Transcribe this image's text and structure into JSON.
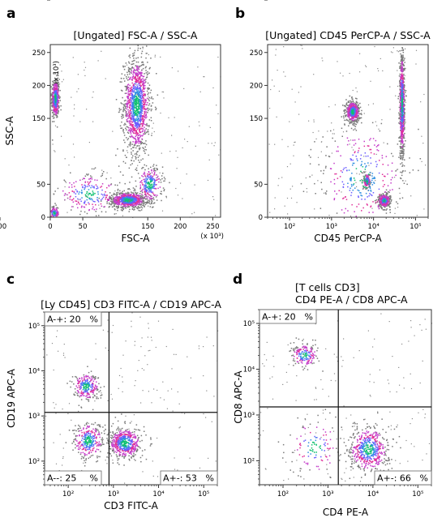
{
  "figure": {
    "panel_letters": [
      "a",
      "b",
      "c",
      "d"
    ]
  },
  "chart_data": [
    {
      "type": "scatter",
      "panel": "a",
      "title": "[Ungated] FSC-A / SSC-A",
      "xlabel": "FSC-A",
      "ylabel": "SSC-A",
      "x_multiplier": "(x 10³)",
      "y_multiplier": "(x 10³)",
      "xlim": [
        0,
        262
      ],
      "ylim": [
        0,
        262
      ],
      "x_ticks": [
        "0",
        "50",
        "100",
        "150",
        "200",
        "250"
      ],
      "y_ticks": [
        "0",
        "50",
        "100",
        "150",
        "200",
        "250"
      ],
      "populations": [
        {
          "x": 8,
          "y": 180,
          "sx": 3,
          "sy": 15,
          "n": 420
        },
        {
          "x": 133,
          "y": 170,
          "sx": 10,
          "sy": 36,
          "n": 1200
        },
        {
          "x": 120,
          "y": 26,
          "sx": 14,
          "sy": 6,
          "n": 780
        },
        {
          "x": 153,
          "y": 50,
          "sx": 10,
          "sy": 14,
          "n": 260
        },
        {
          "x": 60,
          "y": 35,
          "sx": 25,
          "sy": 15,
          "n": 220
        },
        {
          "x": 6,
          "y": 6,
          "sx": 4,
          "sy": 5,
          "n": 120
        }
      ]
    },
    {
      "type": "scatter",
      "panel": "b",
      "title": "[Ungated] CD45 PerCP-A / SSC-A",
      "xlabel": "CD45 PerCP-A",
      "ylabel": "",
      "x_scale": "log",
      "xlim": [
        30,
        200000
      ],
      "ylim": [
        0,
        262
      ],
      "x_ticks": [
        "10²",
        "10³",
        "10⁴",
        "10⁵"
      ],
      "y_ticks": [
        "0",
        "50",
        "100",
        "150",
        "200",
        "250"
      ],
      "populations": [
        {
          "x": 3200,
          "y": 160,
          "sx": 0.08,
          "sy": 8,
          "n": 500
        },
        {
          "x": 48000,
          "y": 170,
          "sx": 0.03,
          "sy": 40,
          "n": 800
        },
        {
          "x": 18000,
          "y": 25,
          "sx": 0.07,
          "sy": 5,
          "n": 380
        },
        {
          "x": 7000,
          "y": 55,
          "sx": 0.04,
          "sy": 6,
          "n": 150
        },
        {
          "x": 5000,
          "y": 60,
          "sx": 0.5,
          "sy": 40,
          "n": 300
        }
      ]
    },
    {
      "type": "scatter",
      "panel": "c",
      "title": "[Ly CD45] CD3 FITC-A / CD19 APC-A",
      "xlabel": "CD3 FITC-A",
      "ylabel": "CD19 APC-A",
      "x_scale": "log",
      "y_scale": "log",
      "xlim": [
        30,
        200000
      ],
      "ylim": [
        30,
        200000
      ],
      "x_ticks": [
        "10²",
        "10³",
        "10⁴",
        "10⁵"
      ],
      "y_ticks": [
        "10²",
        "10³",
        "10⁴",
        "10⁵"
      ],
      "gate_x": 800,
      "gate_y": 1200,
      "quadrants": [
        {
          "label": "A-+: 20",
          "unit": "%",
          "pos": "top-left"
        },
        {
          "label": "A--: 25",
          "unit": "%",
          "pos": "bottom-left"
        },
        {
          "label": "A+-: 53",
          "unit": "%",
          "pos": "bottom-right"
        }
      ],
      "populations": [
        {
          "x": 250,
          "y": 4500,
          "sx": 0.15,
          "sy": 0.15,
          "n": 260
        },
        {
          "x": 280,
          "y": 280,
          "sx": 0.17,
          "sy": 0.2,
          "n": 300
        },
        {
          "x": 1800,
          "y": 250,
          "sx": 0.18,
          "sy": 0.17,
          "n": 550
        }
      ]
    },
    {
      "type": "scatter",
      "panel": "d",
      "title": "[T cells CD3]\nCD4 PE-A / CD8 APC-A",
      "xlabel": "CD4 PE-A",
      "ylabel": "CD8 APC-A",
      "x_scale": "log",
      "y_scale": "log",
      "xlim": [
        30,
        200000
      ],
      "ylim": [
        30,
        200000
      ],
      "x_ticks": [
        "10²",
        "10³",
        "10⁴",
        "10⁵"
      ],
      "y_ticks": [
        "10²",
        "10³",
        "10⁴",
        "10⁵"
      ],
      "gate_x": 1700,
      "gate_y": 1500,
      "quadrants": [
        {
          "label": "A-+: 20",
          "unit": "%",
          "pos": "top-left"
        },
        {
          "label": "A+-: 66",
          "unit": "%",
          "pos": "bottom-right"
        }
      ],
      "populations": [
        {
          "x": 300,
          "y": 20000,
          "sx": 0.15,
          "sy": 0.12,
          "n": 180
        },
        {
          "x": 8000,
          "y": 180,
          "sx": 0.22,
          "sy": 0.25,
          "n": 550
        },
        {
          "x": 500,
          "y": 200,
          "sx": 0.3,
          "sy": 0.3,
          "n": 110
        }
      ]
    }
  ]
}
